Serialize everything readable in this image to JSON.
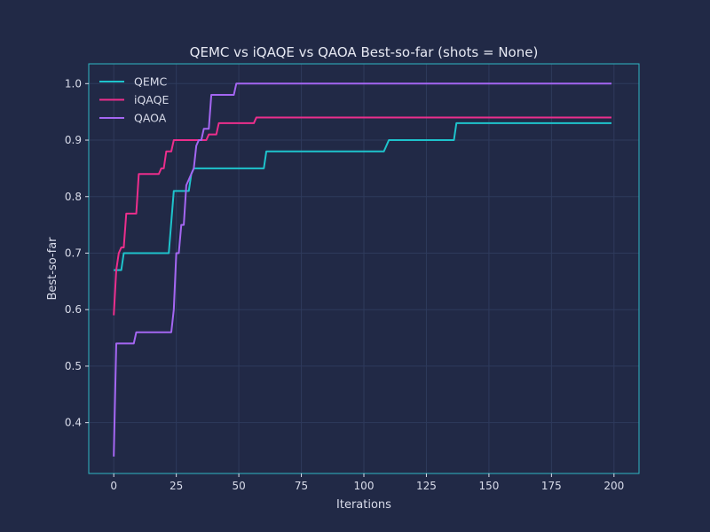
{
  "colors": {
    "background": "#212946",
    "axes_border": "#2fb8c4",
    "grid": "#2e3a5c",
    "text": "#d9dcea",
    "QEMC": "#1ec3cc",
    "iQAQE": "#ec2e8c",
    "QAOA": "#a466f2"
  },
  "chart_data": {
    "type": "line",
    "title": "QEMC vs iQAQE vs QAOA Best-so-far (shots = None)",
    "xlabel": "Iterations",
    "ylabel": "Best-so-far",
    "xlim": [
      -10,
      210
    ],
    "ylim": [
      0.31,
      1.035
    ],
    "xticks": [
      0,
      25,
      50,
      75,
      100,
      125,
      150,
      175,
      200
    ],
    "yticks": [
      0.4,
      0.5,
      0.6,
      0.7,
      0.8,
      0.9,
      1.0
    ],
    "xtick_labels": [
      "0",
      "25",
      "50",
      "75",
      "100",
      "125",
      "150",
      "175",
      "200"
    ],
    "ytick_labels": [
      "0.4",
      "0.5",
      "0.6",
      "0.7",
      "0.8",
      "0.9",
      "1.0"
    ],
    "grid": true,
    "legend_position": "top-left",
    "series": [
      {
        "name": "QEMC",
        "color": "#1ec3cc",
        "points": [
          [
            0,
            0.67
          ],
          [
            3,
            0.67
          ],
          [
            4,
            0.7
          ],
          [
            22,
            0.7
          ],
          [
            24,
            0.81
          ],
          [
            30,
            0.81
          ],
          [
            31,
            0.84
          ],
          [
            32,
            0.85
          ],
          [
            60,
            0.85
          ],
          [
            61,
            0.88
          ],
          [
            108,
            0.88
          ],
          [
            110,
            0.9
          ],
          [
            136,
            0.9
          ],
          [
            137,
            0.93
          ],
          [
            199,
            0.93
          ]
        ]
      },
      {
        "name": "iQAQE",
        "color": "#ec2e8c",
        "points": [
          [
            0,
            0.59
          ],
          [
            1,
            0.67
          ],
          [
            2,
            0.7
          ],
          [
            3,
            0.71
          ],
          [
            4,
            0.71
          ],
          [
            5,
            0.77
          ],
          [
            9,
            0.77
          ],
          [
            10,
            0.84
          ],
          [
            18,
            0.84
          ],
          [
            19,
            0.85
          ],
          [
            20,
            0.85
          ],
          [
            21,
            0.88
          ],
          [
            23,
            0.88
          ],
          [
            24,
            0.9
          ],
          [
            37,
            0.9
          ],
          [
            38,
            0.91
          ],
          [
            41,
            0.91
          ],
          [
            42,
            0.93
          ],
          [
            56,
            0.93
          ],
          [
            57,
            0.94
          ],
          [
            199,
            0.94
          ]
        ]
      },
      {
        "name": "QAOA",
        "color": "#a466f2",
        "points": [
          [
            0,
            0.34
          ],
          [
            1,
            0.54
          ],
          [
            8,
            0.54
          ],
          [
            9,
            0.56
          ],
          [
            23,
            0.56
          ],
          [
            24,
            0.6
          ],
          [
            25,
            0.7
          ],
          [
            26,
            0.7
          ],
          [
            27,
            0.75
          ],
          [
            28,
            0.75
          ],
          [
            29,
            0.82
          ],
          [
            31,
            0.84
          ],
          [
            32,
            0.85
          ],
          [
            33,
            0.89
          ],
          [
            34,
            0.9
          ],
          [
            35,
            0.9
          ],
          [
            36,
            0.92
          ],
          [
            38,
            0.92
          ],
          [
            39,
            0.98
          ],
          [
            48,
            0.98
          ],
          [
            49,
            1.0
          ],
          [
            199,
            1.0
          ]
        ]
      }
    ]
  }
}
